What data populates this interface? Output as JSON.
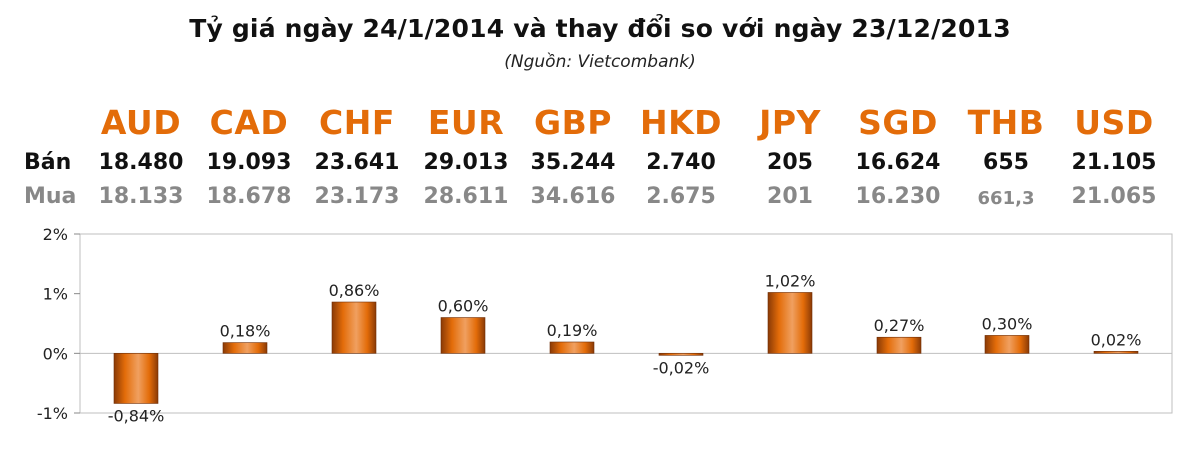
{
  "title": "Tỷ giá ngày 24/1/2014 và thay đổi so với ngày 23/12/2013",
  "source": "(Nguồn: Vietcombank)",
  "sell_label": "Bán",
  "buy_label": "Mua",
  "colors": {
    "accent": "#e36c09",
    "bar_dark": "#8a3a06",
    "bar_light": "#f0a060",
    "grid": "#bfbfbf"
  },
  "currencies": [
    {
      "code": "AUD",
      "sell": "18.480",
      "buy": "18.133"
    },
    {
      "code": "CAD",
      "sell": "19.093",
      "buy": "18.678"
    },
    {
      "code": "CHF",
      "sell": "23.641",
      "buy": "23.173"
    },
    {
      "code": "EUR",
      "sell": "29.013",
      "buy": "28.611"
    },
    {
      "code": "GBP",
      "sell": "35.244",
      "buy": "34.616"
    },
    {
      "code": "HKD",
      "sell": "2.740",
      "buy": "2.675"
    },
    {
      "code": "JPY",
      "sell": "205",
      "buy": "201"
    },
    {
      "code": "SGD",
      "sell": "16.624",
      "buy": "16.230"
    },
    {
      "code": "THB",
      "sell": "655",
      "buy": "661,3"
    },
    {
      "code": "USD",
      "sell": "21.105",
      "buy": "21.065"
    }
  ],
  "chart_data": {
    "type": "bar",
    "title": "Tỷ giá ngày 24/1/2014 và thay đổi so với ngày 23/12/2013",
    "categories": [
      "AUD",
      "CAD",
      "CHF",
      "EUR",
      "GBP",
      "HKD",
      "JPY",
      "SGD",
      "THB",
      "USD"
    ],
    "values": [
      -0.84,
      0.18,
      0.86,
      0.6,
      0.19,
      -0.02,
      1.02,
      0.27,
      0.3,
      0.02
    ],
    "data_labels": [
      "-0,84%",
      "0,18%",
      "0,86%",
      "0,60%",
      "0,19%",
      "-0,02%",
      "1,02%",
      "0,27%",
      "0,30%",
      "0,02%"
    ],
    "y_ticks": [
      2,
      1,
      0,
      -1
    ],
    "y_tick_labels": [
      "2%",
      "1%",
      "0%",
      "-1%"
    ],
    "ylim": [
      -1,
      2
    ],
    "xlabel": "",
    "ylabel": "",
    "grid": false,
    "legend": "none"
  }
}
